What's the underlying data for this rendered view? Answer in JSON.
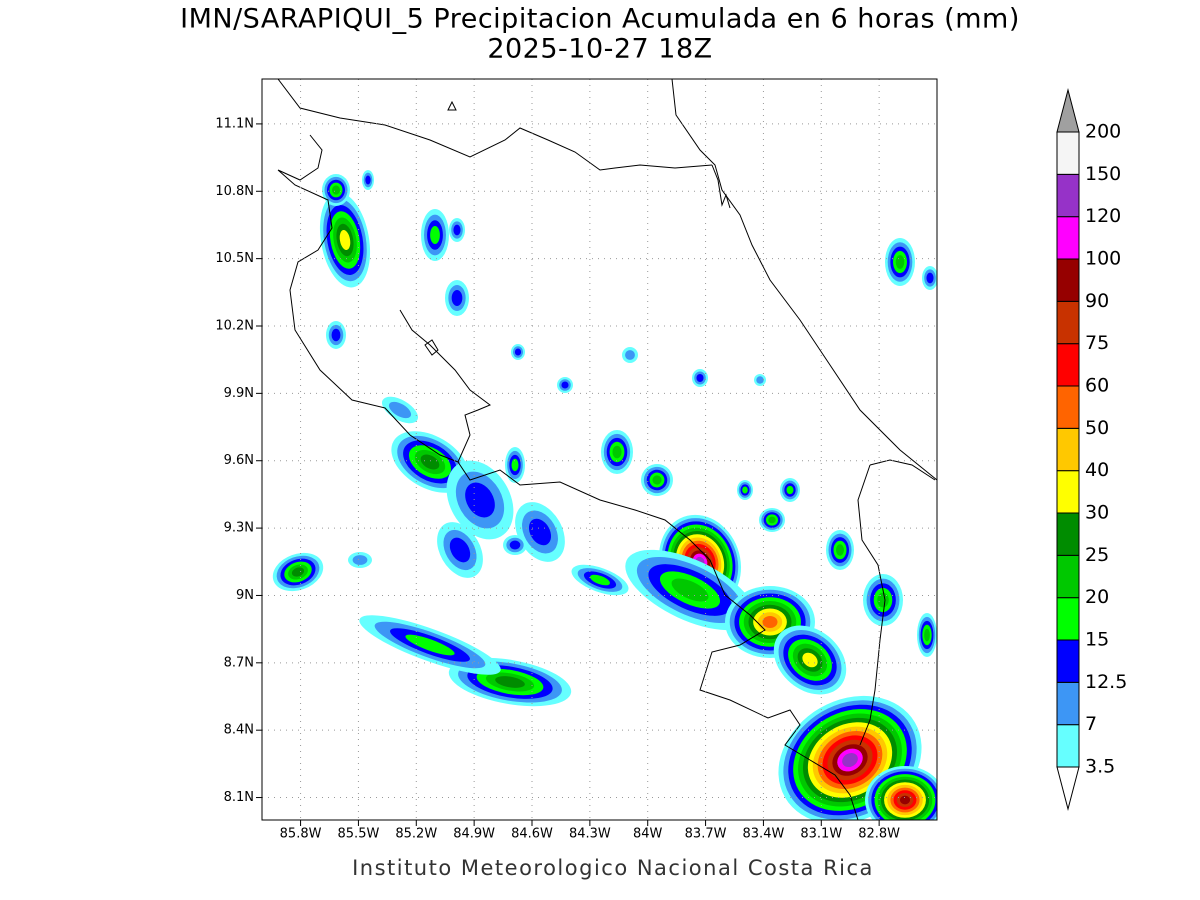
{
  "map": {
    "title": "IMN/SARAPIQUI_5 Precipitacion Acumulada en 6 horas (mm)",
    "subtitle": "2025-10-27 18Z",
    "footer": "Instituto Meteorologico Nacional Costa Rica",
    "xlim": [
      -86.0,
      -82.5
    ],
    "ylim": [
      8.0,
      11.3
    ],
    "xticks": [
      {
        "value": -85.8,
        "label": "85.8W"
      },
      {
        "value": -85.5,
        "label": "85.5W"
      },
      {
        "value": -85.2,
        "label": "85.2W"
      },
      {
        "value": -84.9,
        "label": "84.9W"
      },
      {
        "value": -84.6,
        "label": "84.6W"
      },
      {
        "value": -84.3,
        "label": "84.3W"
      },
      {
        "value": -84.0,
        "label": "84W"
      },
      {
        "value": -83.7,
        "label": "83.7W"
      },
      {
        "value": -83.4,
        "label": "83.4W"
      },
      {
        "value": -83.1,
        "label": "83.1W"
      },
      {
        "value": -82.8,
        "label": "82.8W"
      }
    ],
    "yticks": [
      {
        "value": 8.1,
        "label": "8.1N"
      },
      {
        "value": 8.4,
        "label": "8.4N"
      },
      {
        "value": 8.7,
        "label": "8.7N"
      },
      {
        "value": 9.0,
        "label": "9N"
      },
      {
        "value": 9.3,
        "label": "9.3N"
      },
      {
        "value": 9.6,
        "label": "9.6N"
      },
      {
        "value": 9.9,
        "label": "9.9N"
      },
      {
        "value": 10.2,
        "label": "10.2N"
      },
      {
        "value": 10.5,
        "label": "10.5N"
      },
      {
        "value": 10.8,
        "label": "10.8N"
      },
      {
        "value": 11.1,
        "label": "11.1N"
      }
    ],
    "grid": true,
    "colorbar": {
      "levels": [
        3.5,
        7,
        12.5,
        15,
        20,
        25,
        30,
        40,
        50,
        60,
        75,
        90,
        100,
        120,
        150,
        200
      ],
      "colors": [
        "#66ffff",
        "#3d96f5",
        "#0000ff",
        "#00ff00",
        "#00c800",
        "#008c00",
        "#ffff00",
        "#ffc800",
        "#ff6400",
        "#ff0000",
        "#c83200",
        "#960000",
        "#ff00ff",
        "#9632c8",
        "#f5f5f5"
      ],
      "under_color": "#ffffff",
      "over_color": "#a0a0a0"
    }
  }
}
